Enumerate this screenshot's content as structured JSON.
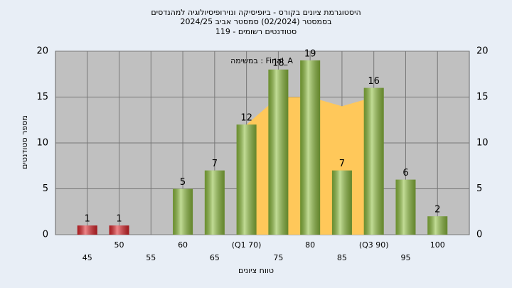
{
  "chart_data": {
    "type": "bar",
    "title": [
      "היסטוגרמת ציונים בקורס - ביופיסיקה ונוירופיסיולוגיה למהנדסים",
      "בסמסטר  (02/2024)  סמסטר אביב 2024/25",
      "סטודנטים רשומים - 119"
    ],
    "annotation": "במשימה : Final_A",
    "x_label": "טווח ציונים",
    "y_label": "מספר סטודנטים",
    "x": [
      45,
      50,
      55,
      60,
      65,
      70,
      75,
      80,
      85,
      90,
      95,
      100
    ],
    "values": [
      1,
      1,
      0,
      5,
      7,
      12,
      18,
      19,
      7,
      16,
      6,
      2
    ],
    "colors": [
      "#e0242a",
      "#e0242a",
      "#8fbf3f",
      "#8fbf3f",
      "#8fbf3f",
      "#8fbf3f",
      "#8fbf3f",
      "#8fbf3f",
      "#8fbf3f",
      "#8fbf3f",
      "#8fbf3f",
      "#8fbf3f"
    ],
    "area": {
      "color": "#ffc85a",
      "x": [
        70,
        75,
        80,
        85,
        90
      ],
      "values": [
        12,
        15,
        15,
        14,
        15
      ]
    },
    "xlim": [
      40,
      105
    ],
    "xticks": [
      45,
      50,
      55,
      60,
      65,
      {
        "value": 70,
        "label": "(Q1 70)"
      },
      75,
      80,
      85,
      {
        "value": 90,
        "label": "(Q3 90)"
      },
      95,
      100
    ],
    "ylim": [
      0,
      20
    ],
    "yticks": [
      0,
      5,
      10,
      15,
      20
    ],
    "right_axis": true,
    "grid": true
  }
}
